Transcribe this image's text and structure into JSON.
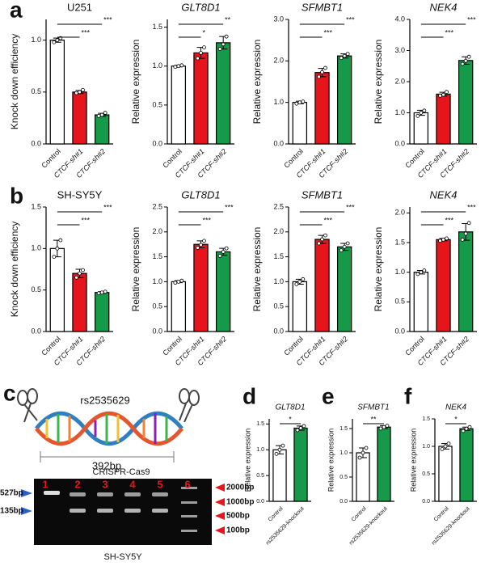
{
  "panel_labels": [
    "a",
    "b",
    "c",
    "d",
    "e",
    "f"
  ],
  "diagram": {
    "snp": "rs2535629",
    "length": "392bp"
  },
  "gel": {
    "title": "CRISPR-Cas9",
    "lanes": [
      "1",
      "2",
      "3",
      "4",
      "5",
      "6"
    ],
    "left_markers": [
      "527bp",
      "135bp"
    ],
    "right_markers": [
      "2000bp",
      "1000bp",
      "500bp",
      "100bp"
    ],
    "caption": "SH-SY5Y"
  },
  "chart_data": [
    {
      "type": "bar",
      "title": "U251",
      "title_italic": false,
      "ylabel": "Knock down efficiency",
      "categories": [
        "Control",
        "CTCF-sh#1",
        "CTCF-sh#2"
      ],
      "values": [
        1.0,
        0.5,
        0.28
      ],
      "errors": [
        0.02,
        0.015,
        0.015
      ],
      "points": [
        [
          0.98,
          1.0,
          1.02
        ],
        [
          0.49,
          0.5,
          0.52
        ],
        [
          0.27,
          0.28,
          0.3
        ]
      ],
      "colors": [
        "#ffffff",
        "#e8141c",
        "#149a48"
      ],
      "ylim": [
        0,
        1.2
      ],
      "yticks": [
        {
          "value": 0,
          "label": "0.0"
        },
        {
          "value": 0.5,
          "label": "0.5"
        },
        {
          "value": 1,
          "label": "1.0"
        }
      ],
      "annotations": [
        {
          "text": "***",
          "between": [
            0,
            1
          ]
        },
        {
          "text": "***",
          "between": [
            0,
            2
          ]
        }
      ]
    },
    {
      "type": "bar",
      "title": "GLT8D1",
      "title_italic": true,
      "ylabel": "Relative expression",
      "categories": [
        "Control",
        "CTCF-sh#1",
        "CTCF-sh#2"
      ],
      "values": [
        1.0,
        1.17,
        1.3
      ],
      "errors": [
        0.01,
        0.07,
        0.08
      ],
      "points": [
        [
          0.99,
          1.0,
          1.01
        ],
        [
          1.1,
          1.17,
          1.24
        ],
        [
          1.22,
          1.28,
          1.38
        ]
      ],
      "colors": [
        "#ffffff",
        "#e8141c",
        "#149a48"
      ],
      "ylim": [
        0,
        1.6
      ],
      "yticks": [
        {
          "value": 0,
          "label": "0.0"
        },
        {
          "value": 0.5,
          "label": "0.5"
        },
        {
          "value": 1,
          "label": "1.0"
        },
        {
          "value": 1.5,
          "label": "1.5"
        }
      ],
      "annotations": [
        {
          "text": "*",
          "between": [
            0,
            1
          ]
        },
        {
          "text": "**",
          "between": [
            0,
            2
          ]
        }
      ]
    },
    {
      "type": "bar",
      "title": "SFMBT1",
      "title_italic": true,
      "ylabel": "Relative expression",
      "categories": [
        "Control",
        "CTCF-sh#1",
        "CTCF-sh#2"
      ],
      "values": [
        1.0,
        1.72,
        2.12
      ],
      "errors": [
        0.03,
        0.1,
        0.05
      ],
      "points": [
        [
          0.97,
          1.0,
          1.02
        ],
        [
          1.62,
          1.73,
          1.83
        ],
        [
          2.07,
          2.12,
          2.17
        ]
      ],
      "colors": [
        "#ffffff",
        "#e8141c",
        "#149a48"
      ],
      "ylim": [
        0,
        3
      ],
      "yticks": [
        {
          "value": 0,
          "label": "0.0"
        },
        {
          "value": 1,
          "label": "1.0"
        },
        {
          "value": 2,
          "label": "2.0"
        },
        {
          "value": 3,
          "label": "3.0"
        }
      ],
      "annotations": [
        {
          "text": "***",
          "between": [
            0,
            1
          ]
        },
        {
          "text": "***",
          "between": [
            0,
            2
          ]
        }
      ]
    },
    {
      "type": "bar",
      "title": "NEK4",
      "title_italic": true,
      "ylabel": "Relative expression",
      "categories": [
        "Control",
        "CTCF-sh#1",
        "CTCF-sh#2"
      ],
      "values": [
        1.0,
        1.6,
        2.68
      ],
      "errors": [
        0.08,
        0.06,
        0.12
      ],
      "points": [
        [
          0.9,
          1.0,
          1.07
        ],
        [
          1.55,
          1.58,
          1.67
        ],
        [
          2.57,
          2.67,
          2.8
        ]
      ],
      "colors": [
        "#ffffff",
        "#e8141c",
        "#149a48"
      ],
      "ylim": [
        0,
        4
      ],
      "yticks": [
        {
          "value": 0,
          "label": "0.0"
        },
        {
          "value": 1,
          "label": "1.0"
        },
        {
          "value": 2,
          "label": "2.0"
        },
        {
          "value": 3,
          "label": "3.0"
        },
        {
          "value": 4,
          "label": "4.0"
        }
      ],
      "annotations": [
        {
          "text": "***",
          "between": [
            0,
            1
          ]
        },
        {
          "text": "***",
          "between": [
            0,
            2
          ]
        }
      ]
    },
    {
      "type": "bar",
      "title": "SH-SY5Y",
      "title_italic": false,
      "ylabel": "Knock down efficiency",
      "categories": [
        "Control",
        "CTCF-sh#1",
        "CTCF-sh#2"
      ],
      "values": [
        1.0,
        0.7,
        0.47
      ],
      "errors": [
        0.1,
        0.05,
        0.01
      ],
      "points": [
        [
          0.9,
          1.0,
          1.1
        ],
        [
          0.65,
          0.7,
          0.74
        ],
        [
          0.46,
          0.47,
          0.48
        ]
      ],
      "colors": [
        "#ffffff",
        "#e8141c",
        "#149a48"
      ],
      "ylim": [
        0,
        1.5
      ],
      "yticks": [
        {
          "value": 0,
          "label": "0.0"
        },
        {
          "value": 0.5,
          "label": "0.5"
        },
        {
          "value": 1,
          "label": "1.0"
        },
        {
          "value": 1.5,
          "label": "1.5"
        }
      ],
      "annotations": [
        {
          "text": "***",
          "between": [
            0,
            1
          ]
        },
        {
          "text": "***",
          "between": [
            0,
            2
          ]
        }
      ]
    },
    {
      "type": "bar",
      "title": "GLT8D1",
      "title_italic": true,
      "ylabel": "Relative expression",
      "categories": [
        "Control",
        "CTCF-sh#1",
        "CTCF-sh#2"
      ],
      "values": [
        1.0,
        1.75,
        1.6
      ],
      "errors": [
        0.02,
        0.07,
        0.07
      ],
      "points": [
        [
          0.98,
          1.0,
          1.02
        ],
        [
          1.68,
          1.74,
          1.82
        ],
        [
          1.52,
          1.6,
          1.67
        ]
      ],
      "colors": [
        "#ffffff",
        "#e8141c",
        "#149a48"
      ],
      "ylim": [
        0,
        2.5
      ],
      "yticks": [
        {
          "value": 0,
          "label": "0.0"
        },
        {
          "value": 0.5,
          "label": "0.5"
        },
        {
          "value": 1,
          "label": "1.0"
        },
        {
          "value": 1.5,
          "label": "1.5"
        },
        {
          "value": 2,
          "label": "2.0"
        },
        {
          "value": 2.5,
          "label": "2.5"
        }
      ],
      "annotations": [
        {
          "text": "***",
          "between": [
            0,
            1
          ]
        },
        {
          "text": "***",
          "between": [
            0,
            2
          ]
        }
      ]
    },
    {
      "type": "bar",
      "title": "SFMBT1",
      "title_italic": true,
      "ylabel": "Relative expression",
      "categories": [
        "Control",
        "CTCF-sh#1",
        "CTCF-sh#2"
      ],
      "values": [
        1.0,
        1.85,
        1.7
      ],
      "errors": [
        0.05,
        0.08,
        0.07
      ],
      "points": [
        [
          0.95,
          1.0,
          1.05
        ],
        [
          1.77,
          1.85,
          1.93
        ],
        [
          1.63,
          1.7,
          1.77
        ]
      ],
      "colors": [
        "#ffffff",
        "#e8141c",
        "#149a48"
      ],
      "ylim": [
        0,
        2.5
      ],
      "yticks": [
        {
          "value": 0,
          "label": "0.0"
        },
        {
          "value": 0.5,
          "label": "0.5"
        },
        {
          "value": 1,
          "label": "1.0"
        },
        {
          "value": 1.5,
          "label": "1.5"
        },
        {
          "value": 2,
          "label": "2.0"
        },
        {
          "value": 2.5,
          "label": "2.5"
        }
      ],
      "annotations": [
        {
          "text": "***",
          "between": [
            0,
            1
          ]
        },
        {
          "text": "***",
          "between": [
            0,
            2
          ]
        }
      ]
    },
    {
      "type": "bar",
      "title": "NEK4",
      "title_italic": true,
      "ylabel": "Relative expression",
      "categories": [
        "Control",
        "CTCF-sh#1",
        "CTCF-sh#2"
      ],
      "values": [
        1.0,
        1.55,
        1.68
      ],
      "errors": [
        0.03,
        0.02,
        0.14
      ],
      "points": [
        [
          0.97,
          1.0,
          1.03
        ],
        [
          1.53,
          1.55,
          1.57
        ],
        [
          1.55,
          1.65,
          1.83
        ]
      ],
      "colors": [
        "#ffffff",
        "#e8141c",
        "#149a48"
      ],
      "ylim": [
        0,
        2.1
      ],
      "yticks": [
        {
          "value": 0,
          "label": "0.0"
        },
        {
          "value": 0.5,
          "label": "0.5"
        },
        {
          "value": 1,
          "label": "1.0"
        },
        {
          "value": 1.5,
          "label": "1.5"
        },
        {
          "value": 2,
          "label": "2.0"
        }
      ],
      "annotations": [
        {
          "text": "***",
          "between": [
            0,
            1
          ]
        },
        {
          "text": "***",
          "between": [
            0,
            2
          ]
        }
      ]
    },
    {
      "type": "bar",
      "title": "GLT8D1",
      "title_italic": true,
      "ylabel": "Relative expression",
      "categories": [
        "Control",
        "rs2535629-knockout"
      ],
      "values": [
        1.0,
        1.42
      ],
      "errors": [
        0.08,
        0.04
      ],
      "points": [
        [
          0.92,
          1.0,
          1.08
        ],
        [
          1.38,
          1.42,
          1.46
        ]
      ],
      "colors": [
        "#ffffff",
        "#149a48"
      ],
      "ylim": [
        0,
        1.6
      ],
      "yticks": [
        {
          "value": 0,
          "label": "0.0"
        },
        {
          "value": 0.5,
          "label": "0.5"
        },
        {
          "value": 1,
          "label": "1.0"
        },
        {
          "value": 1.5,
          "label": "1.5"
        }
      ],
      "annotations": [
        {
          "text": "*",
          "between": [
            0,
            1
          ]
        }
      ]
    },
    {
      "type": "bar",
      "title": "SFMBT1",
      "title_italic": true,
      "ylabel": "Relative expression",
      "categories": [
        "Control",
        "rs2535629-knockout"
      ],
      "values": [
        1.0,
        1.53
      ],
      "errors": [
        0.1,
        0.03
      ],
      "points": [
        [
          0.9,
          1.0,
          1.1
        ],
        [
          1.5,
          1.53,
          1.56
        ]
      ],
      "colors": [
        "#ffffff",
        "#149a48"
      ],
      "ylim": [
        0,
        1.7
      ],
      "yticks": [
        {
          "value": 0,
          "label": "0.0"
        },
        {
          "value": 0.5,
          "label": "0.5"
        },
        {
          "value": 1,
          "label": "1.0"
        },
        {
          "value": 1.5,
          "label": "1.5"
        }
      ],
      "annotations": [
        {
          "text": "**",
          "between": [
            0,
            1
          ]
        }
      ]
    },
    {
      "type": "bar",
      "title": "NEK4",
      "title_italic": true,
      "ylabel": "Relative expression",
      "categories": [
        "Control",
        "rs2535629-knockout"
      ],
      "values": [
        1.0,
        1.32
      ],
      "errors": [
        0.05,
        0.03
      ],
      "points": [
        [
          0.95,
          1.0,
          1.05
        ],
        [
          1.28,
          1.32,
          1.35
        ]
      ],
      "colors": [
        "#ffffff",
        "#149a48"
      ],
      "ylim": [
        0,
        1.5
      ],
      "yticks": [
        {
          "value": 0,
          "label": "0.0"
        },
        {
          "value": 0.5,
          "label": "0.5"
        },
        {
          "value": 1,
          "label": "1.0"
        },
        {
          "value": 1.5,
          "label": "1.5"
        }
      ],
      "annotations": [
        {
          "text": "*",
          "between": [
            0,
            1
          ]
        }
      ]
    }
  ]
}
